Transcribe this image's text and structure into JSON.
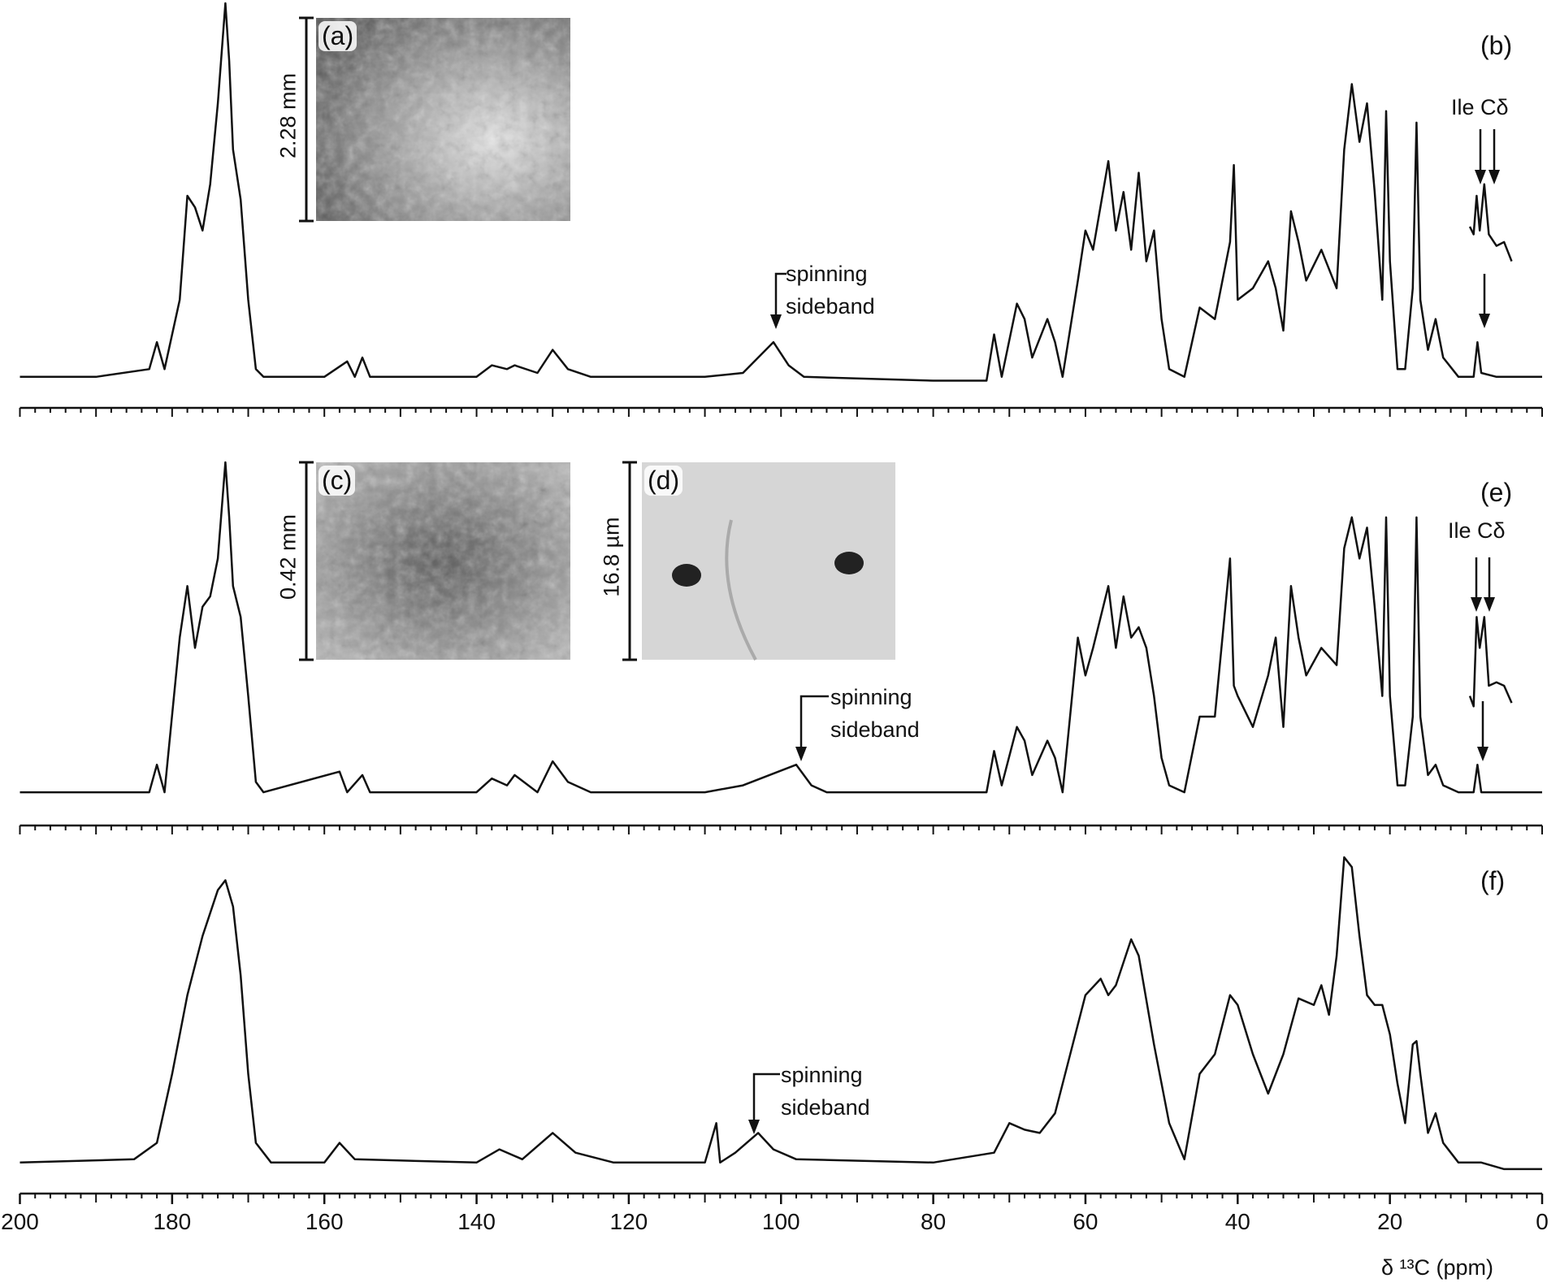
{
  "chart_data": [
    {
      "type": "line",
      "label": "(b)",
      "xlim": [
        200,
        0
      ],
      "ylim": [
        0,
        100
      ],
      "minor_tick_step": 2,
      "major_tick_step": 10,
      "annotations": [
        "spinning sideband",
        "Ile Cδ"
      ],
      "insets": [
        {
          "label": "(a)",
          "scale": "2.28 mm"
        }
      ],
      "series": [
        {
          "color": "#111111",
          "x": [
            200,
            190,
            183,
            182,
            181,
            179,
            178,
            177,
            176,
            175,
            174,
            173,
            172.5,
            172,
            171,
            170,
            169,
            168,
            160,
            157,
            156,
            155,
            154,
            140,
            138,
            136,
            135,
            132,
            130,
            128,
            125,
            110,
            105,
            101,
            99,
            97,
            80,
            73,
            72,
            71,
            69,
            68,
            67,
            65,
            64,
            63,
            61,
            60,
            59,
            57,
            56,
            55,
            54,
            53,
            52,
            51,
            50,
            49,
            47,
            45,
            43,
            41,
            40.5,
            40,
            38,
            36,
            35,
            34,
            33,
            32,
            31,
            29,
            27,
            26,
            25,
            24,
            23,
            22,
            21,
            20.5,
            20,
            19,
            18,
            17,
            16.5,
            16,
            15,
            14,
            13,
            11,
            9,
            8.5,
            8,
            6,
            0
          ],
          "values": [
            3,
            3,
            5,
            12,
            5,
            23,
            50,
            47,
            41,
            53,
            74,
            100,
            85,
            62,
            49,
            23,
            5,
            3,
            3,
            7,
            3,
            8,
            3,
            3,
            6,
            5,
            6,
            4,
            10,
            5,
            3,
            3,
            4,
            12,
            6,
            3,
            2,
            2,
            14,
            3,
            22,
            18,
            8,
            18,
            12,
            3,
            28,
            41,
            36,
            59,
            41,
            51,
            36,
            56,
            33,
            41,
            18,
            5,
            3,
            21,
            18,
            38,
            58,
            23,
            26,
            33,
            26,
            15,
            46,
            38,
            28,
            36,
            26,
            62,
            79,
            64,
            74,
            51,
            23,
            72,
            33,
            5,
            5,
            26,
            69,
            23,
            10,
            18,
            8,
            3,
            3,
            12,
            4,
            3,
            3
          ]
        },
        {
          "color": "#111111",
          "x": [
            9.5,
            9,
            8.6,
            8.2,
            7.6,
            7,
            6,
            5,
            4
          ],
          "values": [
            42,
            40,
            50,
            41,
            53,
            40,
            37,
            38,
            33
          ]
        }
      ]
    },
    {
      "type": "line",
      "label": "(e)",
      "xlim": [
        200,
        0
      ],
      "ylim": [
        0,
        100
      ],
      "minor_tick_step": 2,
      "major_tick_step": 10,
      "annotations": [
        "spinning sideband",
        "Ile Cδ"
      ],
      "insets": [
        {
          "label": "(c)",
          "scale": "0.42 mm"
        },
        {
          "label": "(d)",
          "scale": "16.8 µm"
        }
      ],
      "series": [
        {
          "color": "#111111",
          "x": [
            200,
            183,
            182,
            181,
            179,
            178,
            177,
            176,
            175,
            174,
            173,
            172.5,
            172,
            171,
            170,
            169,
            168,
            158,
            157,
            155,
            154,
            140,
            138,
            136,
            135,
            132,
            130,
            128,
            125,
            110,
            105,
            98,
            96,
            94,
            80,
            73,
            72,
            71,
            69,
            68,
            67,
            65,
            64,
            63,
            61,
            60,
            59,
            57,
            56,
            55,
            54,
            53,
            52,
            51,
            50,
            49,
            47,
            45,
            43,
            41,
            40.5,
            40,
            38,
            36,
            35,
            34,
            33,
            32,
            31,
            29,
            27,
            26,
            25,
            24,
            23,
            22,
            21,
            20.5,
            20,
            19,
            18,
            17,
            16.5,
            16,
            15,
            14,
            13,
            11,
            9,
            8.5,
            8,
            6,
            0
          ],
          "values": [
            4,
            4,
            12,
            4,
            49,
            64,
            46,
            58,
            61,
            72,
            100,
            84,
            64,
            55,
            32,
            7,
            4,
            10,
            4,
            9,
            4,
            4,
            8,
            6,
            9,
            4,
            13,
            7,
            4,
            4,
            6,
            12,
            6,
            4,
            4,
            4,
            16,
            6,
            23,
            19,
            9,
            19,
            14,
            4,
            49,
            38,
            46,
            64,
            46,
            61,
            49,
            52,
            46,
            32,
            14,
            6,
            4,
            26,
            26,
            72,
            35,
            32,
            23,
            38,
            49,
            23,
            64,
            49,
            38,
            46,
            41,
            75,
            84,
            72,
            81,
            58,
            32,
            84,
            32,
            6,
            6,
            26,
            84,
            26,
            9,
            12,
            6,
            4,
            4,
            12,
            4,
            4,
            4
          ]
        },
        {
          "color": "#111111",
          "x": [
            9.5,
            9,
            8.6,
            8.2,
            7.6,
            7,
            6,
            5,
            4
          ],
          "values": [
            32,
            29,
            55,
            46,
            55,
            35,
            36,
            35,
            30
          ]
        }
      ]
    },
    {
      "type": "line",
      "label": "(f)",
      "xlim": [
        200,
        0
      ],
      "ylim": [
        0,
        100
      ],
      "minor_tick_step": 2,
      "major_tick_step": 10,
      "annotations": [
        "spinning sideband"
      ],
      "xticks": [
        200,
        180,
        160,
        140,
        120,
        100,
        80,
        60,
        40,
        20,
        0
      ],
      "xlabel": "δ ¹³C (ppm)",
      "series": [
        {
          "color": "#111111",
          "x": [
            200,
            185,
            182,
            180,
            178,
            176,
            174,
            173,
            172,
            171,
            170,
            169,
            167,
            160,
            158,
            156,
            140,
            137,
            134,
            130,
            127,
            122,
            110,
            108.5,
            108,
            106,
            103,
            101,
            98,
            80,
            72,
            70,
            68,
            66,
            64,
            62,
            60,
            58,
            57,
            56,
            54,
            53,
            51,
            49,
            47,
            45,
            43,
            41,
            40,
            38,
            36,
            34,
            32,
            30,
            29,
            28,
            27,
            26,
            25,
            24,
            23,
            22,
            21,
            20,
            19,
            18,
            17,
            16.5,
            16,
            15,
            14,
            13,
            11,
            8,
            5,
            0
          ],
          "values": [
            5,
            6,
            11,
            32,
            56,
            74,
            88,
            91,
            83,
            62,
            32,
            11,
            5,
            5,
            11,
            6,
            5,
            9,
            6,
            14,
            8,
            5,
            5,
            17,
            5,
            8,
            14,
            9,
            6,
            5,
            8,
            17,
            15,
            14,
            20,
            38,
            56,
            61,
            56,
            59,
            73,
            68,
            41,
            17,
            6,
            32,
            38,
            56,
            53,
            38,
            26,
            38,
            55,
            53,
            59,
            50,
            68,
            98,
            95,
            74,
            56,
            53,
            53,
            44,
            29,
            17,
            41,
            42,
            32,
            14,
            20,
            11,
            5,
            5,
            3,
            3
          ]
        }
      ]
    }
  ]
}
